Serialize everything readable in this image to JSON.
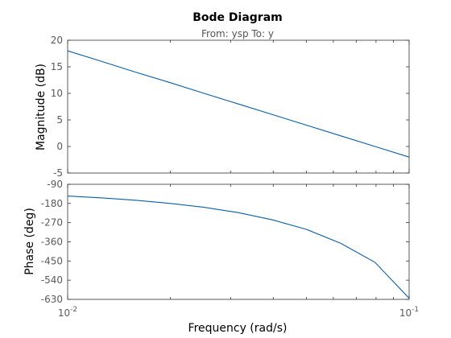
{
  "chart_data": [
    {
      "type": "line",
      "panel": "magnitude",
      "title": "Bode Diagram",
      "subtitle": "From: ysp  To: y",
      "ylabel": "Magnitude (dB)",
      "xscale": "log",
      "xlim": [
        0.01,
        0.1
      ],
      "ylim": [
        -5,
        20
      ],
      "yticks": [
        -5,
        0,
        5,
        10,
        15,
        20
      ],
      "ytick_labels": [
        "-5",
        "0",
        "5",
        "10",
        "15",
        "20"
      ],
      "series": [
        {
          "color": "#0a5fa8",
          "x": [
            0.01,
            0.0126,
            0.0158,
            0.02,
            0.0251,
            0.0316,
            0.0398,
            0.0501,
            0.0631,
            0.0794,
            0.1
          ],
          "y": [
            18.0,
            16.0,
            14.0,
            12.0,
            10.0,
            8.0,
            6.0,
            4.0,
            2.0,
            0.0,
            -2.0
          ]
        }
      ]
    },
    {
      "type": "line",
      "panel": "phase",
      "xlabel": "Frequency  (rad/s)",
      "ylabel": "Phase (deg)",
      "xscale": "log",
      "xlim": [
        0.01,
        0.1
      ],
      "xticks": [
        0.01,
        0.1
      ],
      "xtick_labels": [
        {
          "base": "10",
          "exp": "-2"
        },
        {
          "base": "10",
          "exp": "-1"
        }
      ],
      "ylim": [
        -630,
        -90
      ],
      "yticks": [
        -90,
        -180,
        -270,
        -360,
        -450,
        -540,
        -630
      ],
      "ytick_labels": [
        "-90",
        "-180",
        "-270",
        "-360",
        "-450",
        "-540",
        "-630"
      ],
      "series": [
        {
          "color": "#0a5fa8",
          "x": [
            0.01,
            0.0126,
            0.0158,
            0.02,
            0.0251,
            0.0316,
            0.0398,
            0.0501,
            0.0631,
            0.0794,
            0.1
          ],
          "y": [
            -145,
            -154,
            -165,
            -180,
            -198,
            -223,
            -257,
            -302,
            -367,
            -456,
            -625
          ]
        }
      ]
    }
  ]
}
